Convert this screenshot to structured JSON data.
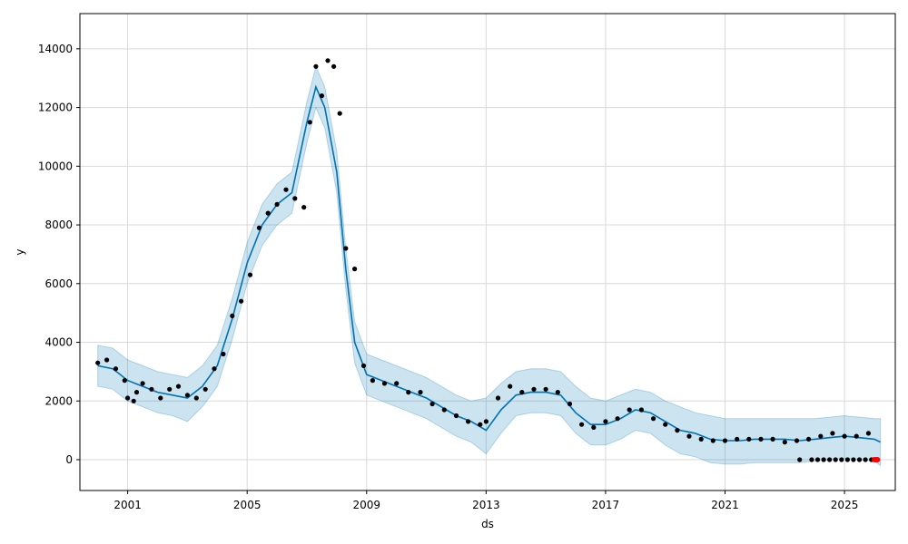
{
  "chart_data": {
    "type": "line",
    "title": "",
    "xlabel": "ds",
    "ylabel": "y",
    "xlim": [
      1999.4,
      2026.7
    ],
    "ylim": [
      -1050,
      15200
    ],
    "grid": true,
    "x_ticks": [
      2001,
      2005,
      2009,
      2013,
      2017,
      2021,
      2025
    ],
    "x_tick_labels": [
      "2001",
      "2005",
      "2009",
      "2013",
      "2017",
      "2021",
      "2025"
    ],
    "y_ticks": [
      0,
      2000,
      4000,
      6000,
      8000,
      10000,
      12000,
      14000
    ],
    "y_tick_labels": [
      "0",
      "2000",
      "4000",
      "6000",
      "8000",
      "10000",
      "12000",
      "14000"
    ],
    "colors": {
      "forecast": "#0072B2",
      "interval": "#0072B2",
      "observed": "#000000",
      "outliers": "#ff0000",
      "grid": "#d9d9d9"
    },
    "series": [
      {
        "kind": "observed",
        "x": [
          2000.0,
          2000.3,
          2000.6,
          2000.9,
          2001.0,
          2001.2,
          2001.3,
          2001.5,
          2001.8,
          2002.1,
          2002.4,
          2002.7,
          2003.0,
          2003.3,
          2003.6,
          2003.9,
          2004.2,
          2004.5,
          2004.8,
          2005.1,
          2005.4,
          2005.7,
          2006.0,
          2006.3,
          2006.6,
          2006.9,
          2007.1,
          2007.3,
          2007.5,
          2007.7,
          2007.9,
          2008.1,
          2008.3,
          2008.6,
          2008.9,
          2009.2,
          2009.6,
          2010.0,
          2010.4,
          2010.8,
          2011.2,
          2011.6,
          2012.0,
          2012.4,
          2012.8,
          2013.0,
          2013.4,
          2013.8,
          2014.2,
          2014.6,
          2015.0,
          2015.4,
          2015.8,
          2016.2,
          2016.6,
          2017.0,
          2017.4,
          2017.8,
          2018.2,
          2018.6,
          2019.0,
          2019.4,
          2019.8,
          2020.2,
          2020.6,
          2021.0,
          2021.4,
          2021.8,
          2022.2,
          2022.6,
          2023.0,
          2023.4,
          2023.8,
          2024.2,
          2024.6,
          2025.0,
          2025.4,
          2025.8
        ],
        "y": [
          3300,
          3400,
          3100,
          2700,
          2100,
          2000,
          2300,
          2600,
          2400,
          2100,
          2400,
          2500,
          2200,
          2100,
          2400,
          3100,
          3600,
          4900,
          5400,
          6300,
          7900,
          8400,
          8700,
          9200,
          8900,
          8600,
          11500,
          13400,
          12400,
          13600,
          13400,
          11800,
          7200,
          6500,
          3200,
          2700,
          2600,
          2600,
          2300,
          2300,
          1900,
          1700,
          1500,
          1300,
          1200,
          1300,
          2100,
          2500,
          2300,
          2400,
          2400,
          2300,
          1900,
          1200,
          1100,
          1300,
          1400,
          1700,
          1700,
          1400,
          1200,
          1000,
          800,
          700,
          650,
          650,
          700,
          700,
          700,
          700,
          600,
          650,
          700,
          800,
          900,
          800,
          800,
          900
        ]
      },
      {
        "kind": "observed-zero",
        "x": [
          2023.5,
          2023.9,
          2024.1,
          2024.3,
          2024.5,
          2024.7,
          2024.9,
          2025.1,
          2025.3,
          2025.5,
          2025.7,
          2025.9
        ],
        "y": [
          0,
          0,
          0,
          0,
          0,
          0,
          0,
          0,
          0,
          0,
          0,
          0
        ]
      },
      {
        "kind": "outliers",
        "x": [
          2026.0,
          2026.05,
          2026.1
        ],
        "y": [
          0,
          0,
          0
        ]
      },
      {
        "kind": "forecast",
        "x": [
          2000.0,
          2000.5,
          2001.0,
          2001.5,
          2002.0,
          2002.5,
          2003.0,
          2003.5,
          2004.0,
          2004.5,
          2005.0,
          2005.5,
          2006.0,
          2006.5,
          2007.0,
          2007.3,
          2007.6,
          2008.0,
          2008.3,
          2008.6,
          2009.0,
          2009.5,
          2010.0,
          2010.5,
          2011.0,
          2011.5,
          2012.0,
          2012.5,
          2013.0,
          2013.5,
          2014.0,
          2014.5,
          2015.0,
          2015.5,
          2016.0,
          2016.5,
          2017.0,
          2017.5,
          2018.0,
          2018.5,
          2019.0,
          2019.5,
          2020.0,
          2020.5,
          2021.0,
          2021.5,
          2022.0,
          2022.5,
          2023.0,
          2023.5,
          2024.0,
          2024.5,
          2025.0,
          2025.5,
          2026.0,
          2026.2
        ],
        "y": [
          3200,
          3100,
          2700,
          2500,
          2300,
          2200,
          2100,
          2500,
          3200,
          4800,
          6700,
          8000,
          8700,
          9100,
          11500,
          12700,
          12000,
          9800,
          6500,
          4000,
          2900,
          2700,
          2500,
          2300,
          2100,
          1800,
          1500,
          1300,
          1000,
          1700,
          2200,
          2300,
          2300,
          2200,
          1600,
          1200,
          1200,
          1400,
          1700,
          1600,
          1300,
          1000,
          900,
          700,
          650,
          650,
          700,
          700,
          700,
          650,
          700,
          750,
          800,
          750,
          700,
          600
        ]
      },
      {
        "kind": "interval-upper",
        "x": [
          2000.0,
          2000.5,
          2001.0,
          2001.5,
          2002.0,
          2002.5,
          2003.0,
          2003.5,
          2004.0,
          2004.5,
          2005.0,
          2005.5,
          2006.0,
          2006.5,
          2007.0,
          2007.3,
          2007.6,
          2008.0,
          2008.3,
          2008.6,
          2009.0,
          2009.5,
          2010.0,
          2010.5,
          2011.0,
          2011.5,
          2012.0,
          2012.5,
          2013.0,
          2013.5,
          2014.0,
          2014.5,
          2015.0,
          2015.5,
          2016.0,
          2016.5,
          2017.0,
          2017.5,
          2018.0,
          2018.5,
          2019.0,
          2019.5,
          2020.0,
          2020.5,
          2021.0,
          2021.5,
          2022.0,
          2022.5,
          2023.0,
          2023.5,
          2024.0,
          2024.5,
          2025.0,
          2025.5,
          2026.0,
          2026.2
        ],
        "y": [
          3900,
          3800,
          3400,
          3200,
          3000,
          2900,
          2800,
          3200,
          3900,
          5500,
          7400,
          8700,
          9400,
          9800,
          12200,
          13400,
          12700,
          10500,
          7200,
          4700,
          3600,
          3400,
          3200,
          3000,
          2800,
          2500,
          2200,
          2000,
          2100,
          2600,
          3000,
          3100,
          3100,
          3000,
          2500,
          2100,
          2000,
          2200,
          2400,
          2300,
          2000,
          1800,
          1600,
          1500,
          1400,
          1400,
          1400,
          1400,
          1400,
          1400,
          1400,
          1450,
          1500,
          1450,
          1400,
          1400
        ]
      },
      {
        "kind": "interval-lower",
        "x": [
          2000.0,
          2000.5,
          2001.0,
          2001.5,
          2002.0,
          2002.5,
          2003.0,
          2003.5,
          2004.0,
          2004.5,
          2005.0,
          2005.5,
          2006.0,
          2006.5,
          2007.0,
          2007.3,
          2007.6,
          2008.0,
          2008.3,
          2008.6,
          2009.0,
          2009.5,
          2010.0,
          2010.5,
          2011.0,
          2011.5,
          2012.0,
          2012.5,
          2013.0,
          2013.5,
          2014.0,
          2014.5,
          2015.0,
          2015.5,
          2016.0,
          2016.5,
          2017.0,
          2017.5,
          2018.0,
          2018.5,
          2019.0,
          2019.5,
          2020.0,
          2020.5,
          2021.0,
          2021.5,
          2022.0,
          2022.5,
          2023.0,
          2023.5,
          2024.0,
          2024.5,
          2025.0,
          2025.5,
          2026.0,
          2026.2
        ],
        "y": [
          2500,
          2400,
          2000,
          1800,
          1600,
          1500,
          1300,
          1800,
          2500,
          4100,
          6000,
          7300,
          8000,
          8400,
          10800,
          12000,
          11300,
          9100,
          5800,
          3300,
          2200,
          2000,
          1800,
          1600,
          1400,
          1100,
          800,
          600,
          200,
          900,
          1500,
          1600,
          1600,
          1500,
          900,
          500,
          500,
          700,
          1000,
          900,
          500,
          200,
          100,
          -100,
          -150,
          -150,
          -100,
          -100,
          -100,
          -100,
          -50,
          0,
          50,
          0,
          -50,
          -200
        ]
      }
    ]
  }
}
